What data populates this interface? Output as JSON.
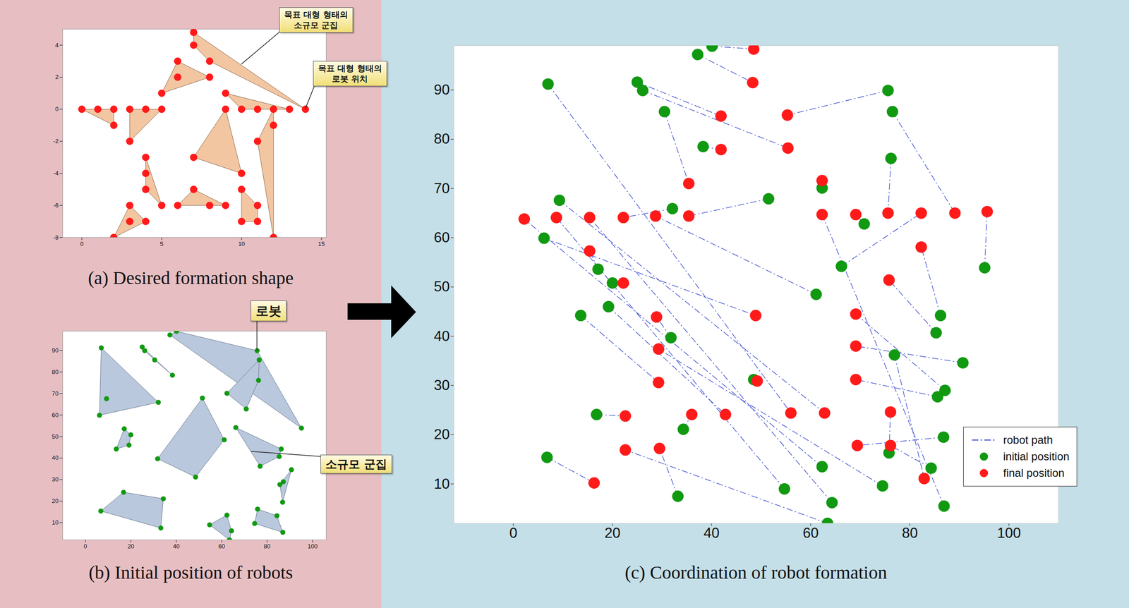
{
  "chart_data": [
    {
      "type": "scatter",
      "title": "(a) Desired formation shape",
      "color": "#ff1a1a",
      "xlim": [
        -1.2,
        15.3
      ],
      "ylim": [
        -8,
        5
      ],
      "xticks": [
        0,
        5,
        10,
        15
      ],
      "yticks": [
        -8,
        -6,
        -4,
        -2,
        0,
        2,
        4
      ],
      "grid": false,
      "groups": [
        [
          [
            0,
            0
          ],
          [
            1,
            0
          ],
          [
            2,
            0
          ],
          [
            2,
            -1
          ]
        ],
        [
          [
            3,
            0
          ],
          [
            4,
            0
          ],
          [
            5,
            0
          ],
          [
            3,
            -2
          ]
        ],
        [
          [
            7,
            4.8
          ],
          [
            7,
            4
          ],
          [
            8,
            3
          ],
          [
            14,
            0
          ]
        ],
        [
          [
            6,
            3
          ],
          [
            6,
            2
          ],
          [
            5,
            1
          ],
          [
            8,
            2
          ]
        ],
        [
          [
            9,
            1
          ],
          [
            13,
            0
          ],
          [
            11,
            0
          ],
          [
            10,
            0
          ]
        ],
        [
          [
            9,
            0
          ],
          [
            10,
            -4
          ],
          [
            7,
            -3
          ]
        ],
        [
          [
            12,
            0
          ],
          [
            12,
            -1
          ],
          [
            11,
            -2
          ],
          [
            12,
            -8
          ]
        ],
        [
          [
            4,
            -3
          ],
          [
            4,
            -4
          ],
          [
            4,
            -5
          ],
          [
            5,
            -6
          ]
        ],
        [
          [
            7,
            -5
          ],
          [
            6,
            -6
          ],
          [
            8,
            -6
          ],
          [
            9,
            -6
          ]
        ],
        [
          [
            10,
            -5
          ],
          [
            11,
            -6
          ],
          [
            11,
            -7
          ],
          [
            10,
            -7
          ]
        ],
        [
          [
            3,
            -6
          ],
          [
            3,
            -7
          ],
          [
            4,
            -7
          ],
          [
            2,
            -8
          ]
        ]
      ],
      "annotations": [
        {
          "text": "목표 대형 형태의\n소규모 군집",
          "target": [
            10,
            2.8
          ]
        },
        {
          "text": "목표 대형 형태의\n로봇 위치",
          "target": [
            14,
            0
          ]
        }
      ]
    },
    {
      "type": "scatter",
      "title": "(b) Initial position of robots",
      "color": "#119911",
      "xlim": [
        -10,
        106
      ],
      "ylim": [
        2,
        99
      ],
      "xticks": [
        0,
        20,
        40,
        60,
        80,
        100
      ],
      "yticks": [
        10,
        20,
        30,
        40,
        50,
        60,
        70,
        80,
        90
      ],
      "grid": false,
      "groups": [
        [
          [
            7,
            91.2
          ],
          [
            9.3,
            67.6
          ],
          [
            6.2,
            59.9
          ],
          [
            32.1,
            65.9
          ]
        ],
        [
          [
            25,
            91.6
          ],
          [
            26.1,
            89.9
          ],
          [
            30.5,
            85.6
          ],
          [
            38.3,
            78.5
          ]
        ],
        [
          [
            40.1,
            98.9
          ],
          [
            37.2,
            97.2
          ],
          [
            75.6,
            89.9
          ],
          [
            95.1,
            53.9
          ]
        ],
        [
          [
            76.5,
            85.6
          ],
          [
            76.2,
            76.1
          ],
          [
            62.3,
            70.1
          ],
          [
            70.8,
            62.8
          ]
        ],
        [
          [
            51.5,
            67.9
          ],
          [
            31.8,
            39.7
          ],
          [
            48.5,
            31.2
          ],
          [
            61.1,
            48.5
          ]
        ],
        [
          [
            17.1,
            53.6
          ],
          [
            20,
            50.8
          ],
          [
            13.6,
            44.2
          ],
          [
            19.2,
            46
          ]
        ],
        [
          [
            66.2,
            54.2
          ],
          [
            86.2,
            44.2
          ],
          [
            85.3,
            40.7
          ],
          [
            76.9,
            36.2
          ]
        ],
        [
          [
            6.8,
            15.4
          ],
          [
            16.8,
            24.1
          ],
          [
            34.3,
            21.1
          ],
          [
            33.2,
            7.5
          ]
        ],
        [
          [
            90.7,
            34.6
          ],
          [
            87.1,
            29
          ],
          [
            85.6,
            27.7
          ],
          [
            86.8,
            19.5
          ]
        ],
        [
          [
            62.3,
            13.5
          ],
          [
            54.7,
            9
          ],
          [
            64.3,
            6.2
          ],
          [
            63.4,
            2
          ]
        ],
        [
          [
            75.8,
            16.3
          ],
          [
            74.5,
            9.6
          ],
          [
            84.3,
            13.2
          ],
          [
            86.9,
            5.5
          ]
        ]
      ],
      "annotations": [
        {
          "text": "로봇",
          "target": [
            75.6,
            89.9
          ]
        },
        {
          "text": "소규모 군집",
          "target": [
            73,
            43
          ]
        }
      ]
    },
    {
      "type": "scatter",
      "title": "(c) Coordination of robot formation",
      "xlim": [
        -12,
        110
      ],
      "ylim": [
        2,
        99
      ],
      "xticks": [
        0,
        20,
        40,
        60,
        80,
        100
      ],
      "yticks": [
        10,
        20,
        30,
        40,
        50,
        60,
        70,
        80,
        90
      ],
      "grid": false,
      "legend": "lower right",
      "series": [
        {
          "name": "robot path",
          "type": "line",
          "color": "#3a4bd0",
          "line_style": "dashdot"
        },
        {
          "name": "initial position",
          "type": "scatter",
          "color": "#119911",
          "marker": "circle",
          "values": [
            [
              40.1,
              98.9
            ],
            [
              37.2,
              97.2
            ],
            [
              7,
              91.2
            ],
            [
              25,
              91.6
            ],
            [
              26.1,
              89.9
            ],
            [
              75.6,
              89.9
            ],
            [
              76.5,
              85.6
            ],
            [
              30.5,
              85.6
            ],
            [
              38.3,
              78.5
            ],
            [
              76.2,
              76.1
            ],
            [
              62.3,
              70.1
            ],
            [
              51.5,
              67.9
            ],
            [
              9.3,
              67.6
            ],
            [
              32.1,
              65.9
            ],
            [
              70.8,
              62.8
            ],
            [
              6.2,
              59.9
            ],
            [
              66.2,
              54.2
            ],
            [
              95.1,
              53.9
            ],
            [
              17.1,
              53.6
            ],
            [
              20,
              50.8
            ],
            [
              61.1,
              48.5
            ],
            [
              13.6,
              44.2
            ],
            [
              86.2,
              44.2
            ],
            [
              19.2,
              46
            ],
            [
              85.3,
              40.7
            ],
            [
              31.8,
              39.7
            ],
            [
              76.9,
              36.2
            ],
            [
              90.7,
              34.6
            ],
            [
              48.5,
              31.2
            ],
            [
              87.1,
              29
            ],
            [
              85.6,
              27.7
            ],
            [
              16.8,
              24.1
            ],
            [
              34.3,
              21.1
            ],
            [
              86.8,
              19.5
            ],
            [
              75.8,
              16.3
            ],
            [
              6.8,
              15.4
            ],
            [
              62.3,
              13.5
            ],
            [
              84.3,
              13.2
            ],
            [
              54.7,
              9
            ],
            [
              74.5,
              9.6
            ],
            [
              33.2,
              7.5
            ],
            [
              64.3,
              6.2
            ],
            [
              86.9,
              5.5
            ],
            [
              63.4,
              2
            ]
          ]
        },
        {
          "name": "final position",
          "type": "scatter",
          "color": "#ff1a1a",
          "marker": "circle",
          "values": [
            [
              48.5,
              98.3
            ],
            [
              48.3,
              91.5
            ],
            [
              56,
              24.4
            ],
            [
              41.9,
              84.7
            ],
            [
              55.4,
              78.2
            ],
            [
              55.3,
              84.9
            ],
            [
              89.1,
              65
            ],
            [
              35.4,
              71
            ],
            [
              41.9,
              77.9
            ],
            [
              75.6,
              65
            ],
            [
              62.3,
              71.6
            ],
            [
              35.4,
              64.4
            ],
            [
              62.8,
              24.4
            ],
            [
              22.2,
              64.1
            ],
            [
              69.1,
              64.7
            ],
            [
              48.9,
              44.2
            ],
            [
              82.3,
              65
            ],
            [
              95.6,
              65.3
            ],
            [
              15.4,
              57.3
            ],
            [
              22.2,
              50.8
            ],
            [
              28.7,
              64.4
            ],
            [
              29.3,
              30.6
            ],
            [
              82.3,
              58.1
            ],
            [
              42.8,
              24.1
            ],
            [
              75.8,
              51.4
            ],
            [
              28.9,
              43.9
            ],
            [
              82.9,
              11.1
            ],
            [
              69.1,
              38
            ],
            [
              49.2,
              30.9
            ],
            [
              69.1,
              44.5
            ],
            [
              69.1,
              31.2
            ],
            [
              22.6,
              23.8
            ],
            [
              36,
              24.1
            ],
            [
              69.4,
              17.8
            ],
            [
              76.1,
              24.6
            ],
            [
              16.3,
              10.2
            ],
            [
              2.2,
              63.8
            ],
            [
              76.1,
              17.8
            ],
            [
              8.7,
              64.1
            ],
            [
              29.3,
              37.4
            ],
            [
              29.5,
              17.2
            ],
            [
              15.4,
              64.1
            ],
            [
              62.3,
              64.7
            ],
            [
              22.6,
              16.9
            ]
          ]
        }
      ]
    }
  ]
}
